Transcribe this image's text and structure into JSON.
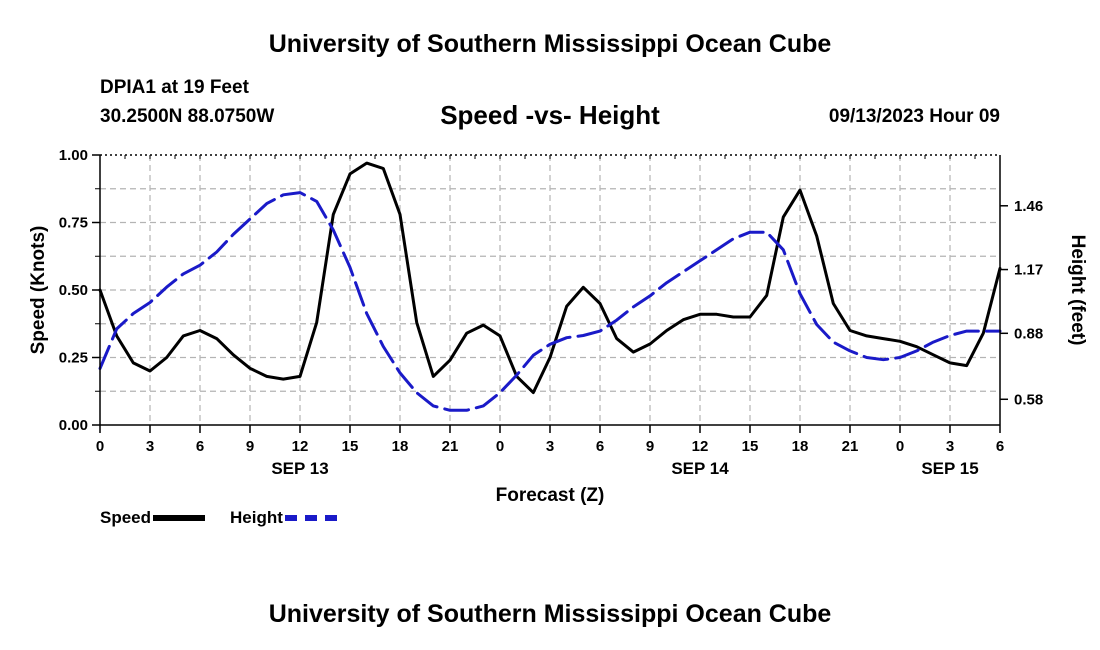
{
  "page": {
    "top_title": "University of Southern Mississippi Ocean Cube",
    "bottom_title": "University of Southern Mississippi Ocean Cube",
    "station": "DPIA1 at 19 Feet",
    "coords": "30.2500N  88.0750W",
    "run_time": "09/13/2023 Hour 09"
  },
  "legend": {
    "speed_label": "Speed",
    "height_label": "Height"
  },
  "colors": {
    "speed": "#000000",
    "height": "#1a1ac8",
    "grid": "#b4b4b4"
  },
  "chart_data": {
    "type": "line",
    "title": "Speed -vs- Height",
    "xlabel": "Forecast (Z)",
    "ylabel": "Speed (Knots)",
    "y2label": "Height (feet)",
    "xlim": [
      0,
      54
    ],
    "ylim": [
      0,
      1.0
    ],
    "y2lim": [
      0.463,
      1.691
    ],
    "x_ticks": [
      0,
      3,
      6,
      9,
      12,
      15,
      18,
      21,
      24,
      27,
      30,
      33,
      36,
      39,
      42,
      45,
      48,
      51,
      54
    ],
    "x_tick_labels": [
      "0",
      "3",
      "6",
      "9",
      "12",
      "15",
      "18",
      "21",
      "0",
      "3",
      "6",
      "9",
      "12",
      "15",
      "18",
      "21",
      "0",
      "3",
      "6"
    ],
    "y_ticks": [
      0,
      0.25,
      0.5,
      0.75,
      1.0
    ],
    "y_tick_labels": [
      "0.00",
      "0.25",
      "0.50",
      "0.75",
      "1.00"
    ],
    "y2_ticks": [
      0.58,
      0.88,
      1.17,
      1.46
    ],
    "y2_tick_labels": [
      "0.58",
      "0.88",
      "1.17",
      "1.46"
    ],
    "date_labels": [
      {
        "x": 12,
        "label": "SEP 13"
      },
      {
        "x": 36,
        "label": "SEP 14"
      },
      {
        "x": 51,
        "label": "SEP 15"
      }
    ],
    "grid": true,
    "series": [
      {
        "name": "Speed",
        "axis": "left",
        "style": "solid",
        "x": [
          0,
          1,
          2,
          3,
          4,
          5,
          6,
          7,
          8,
          9,
          10,
          11,
          12,
          13,
          14,
          15,
          16,
          17,
          18,
          19,
          20,
          21,
          22,
          23,
          24,
          25,
          26,
          27,
          28,
          29,
          30,
          31,
          32,
          33,
          34,
          35,
          36,
          37,
          38,
          39,
          40,
          41,
          42,
          43,
          44,
          45,
          46,
          47,
          48,
          49,
          50,
          51,
          52,
          53,
          54
        ],
        "values": [
          0.5,
          0.33,
          0.23,
          0.2,
          0.25,
          0.33,
          0.35,
          0.32,
          0.26,
          0.21,
          0.18,
          0.17,
          0.18,
          0.38,
          0.78,
          0.93,
          0.97,
          0.95,
          0.78,
          0.38,
          0.18,
          0.24,
          0.34,
          0.37,
          0.33,
          0.18,
          0.12,
          0.25,
          0.44,
          0.51,
          0.45,
          0.32,
          0.27,
          0.3,
          0.35,
          0.39,
          0.41,
          0.41,
          0.4,
          0.4,
          0.48,
          0.77,
          0.87,
          0.7,
          0.45,
          0.35,
          0.33,
          0.32,
          0.31,
          0.29,
          0.26,
          0.23,
          0.22,
          0.34,
          0.58
        ]
      },
      {
        "name": "Height",
        "axis": "right",
        "style": "dashed",
        "x": [
          0,
          1,
          2,
          3,
          4,
          5,
          6,
          7,
          8,
          9,
          10,
          11,
          12,
          13,
          14,
          15,
          16,
          17,
          18,
          19,
          20,
          21,
          22,
          23,
          24,
          25,
          26,
          27,
          28,
          29,
          30,
          31,
          32,
          33,
          34,
          35,
          36,
          37,
          38,
          39,
          40,
          41,
          42,
          43,
          44,
          45,
          46,
          47,
          48,
          49,
          50,
          51,
          52,
          53,
          54
        ],
        "values": [
          0.72,
          0.9,
          0.97,
          1.02,
          1.09,
          1.15,
          1.19,
          1.25,
          1.33,
          1.4,
          1.47,
          1.51,
          1.52,
          1.48,
          1.35,
          1.18,
          0.97,
          0.82,
          0.7,
          0.61,
          0.55,
          0.53,
          0.53,
          0.55,
          0.61,
          0.69,
          0.78,
          0.83,
          0.86,
          0.87,
          0.89,
          0.94,
          1.0,
          1.05,
          1.11,
          1.16,
          1.21,
          1.26,
          1.31,
          1.34,
          1.34,
          1.26,
          1.06,
          0.92,
          0.84,
          0.8,
          0.77,
          0.76,
          0.77,
          0.8,
          0.84,
          0.87,
          0.89,
          0.89,
          0.89
        ]
      }
    ]
  }
}
